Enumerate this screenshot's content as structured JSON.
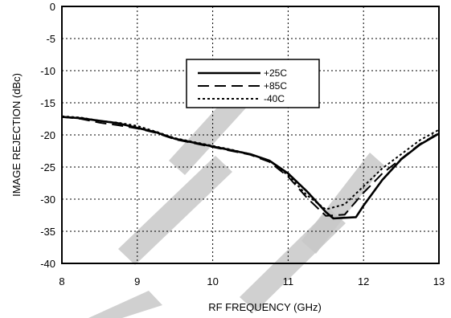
{
  "chart_data": {
    "type": "line",
    "title": "",
    "xlabel": "RF FREQUENCY (GHz)",
    "ylabel": "IMAGE REJECTION (dBc)",
    "xlim": [
      8,
      13
    ],
    "ylim": [
      -40,
      0
    ],
    "xticks": [
      "8",
      "9",
      "10",
      "11",
      "12",
      "13"
    ],
    "yticks": [
      "0",
      "-5",
      "-10",
      "-15",
      "-20",
      "-25",
      "-30",
      "-35",
      "-40"
    ],
    "grid": true,
    "legend_position": "upper-center",
    "series": [
      {
        "name": "+25C",
        "style": "solid",
        "x": [
          8,
          8.25,
          8.5,
          8.75,
          9,
          9.25,
          9.5,
          9.75,
          10,
          10.25,
          10.5,
          10.75,
          11,
          11.25,
          11.5,
          11.6,
          11.75,
          11.9,
          12,
          12.25,
          12.5,
          12.75,
          13
        ],
        "y": [
          -17.2,
          -17.4,
          -17.8,
          -18.2,
          -18.9,
          -19.6,
          -20.6,
          -21.2,
          -21.8,
          -22.4,
          -23.0,
          -24.0,
          -26.0,
          -28.8,
          -32.0,
          -33.0,
          -32.9,
          -32.8,
          -31.0,
          -27.0,
          -23.8,
          -21.5,
          -19.8
        ]
      },
      {
        "name": "+85C",
        "style": "dashed",
        "x": [
          8,
          8.25,
          8.5,
          8.75,
          9,
          9.25,
          9.5,
          9.75,
          10,
          10.25,
          10.5,
          10.75,
          11,
          11.25,
          11.5,
          11.75,
          12,
          12.25,
          12.5,
          12.75,
          13
        ],
        "y": [
          -17.2,
          -17.5,
          -18.1,
          -18.5,
          -19.0,
          -19.7,
          -20.7,
          -21.3,
          -21.9,
          -22.5,
          -23.1,
          -24.2,
          -26.5,
          -29.8,
          -32.6,
          -32.4,
          -29.0,
          -26.0,
          -23.7,
          -21.4,
          -19.7
        ]
      },
      {
        "name": "-40C",
        "style": "dotted",
        "x": [
          8,
          8.25,
          8.5,
          8.75,
          9,
          9.25,
          9.5,
          9.75,
          10,
          10.25,
          10.5,
          10.75,
          11,
          11.25,
          11.5,
          11.75,
          12,
          12.25,
          12.5,
          12.75,
          13
        ],
        "y": [
          -17.1,
          -17.3,
          -17.8,
          -18.1,
          -18.6,
          -19.5,
          -20.5,
          -21.1,
          -21.7,
          -22.3,
          -23.0,
          -24.0,
          -26.3,
          -29.4,
          -31.6,
          -30.8,
          -28.0,
          -25.2,
          -23.0,
          -20.8,
          -19.2
        ]
      }
    ]
  },
  "colors": {
    "line": "#000000",
    "watermark": "#c8c8c8"
  }
}
